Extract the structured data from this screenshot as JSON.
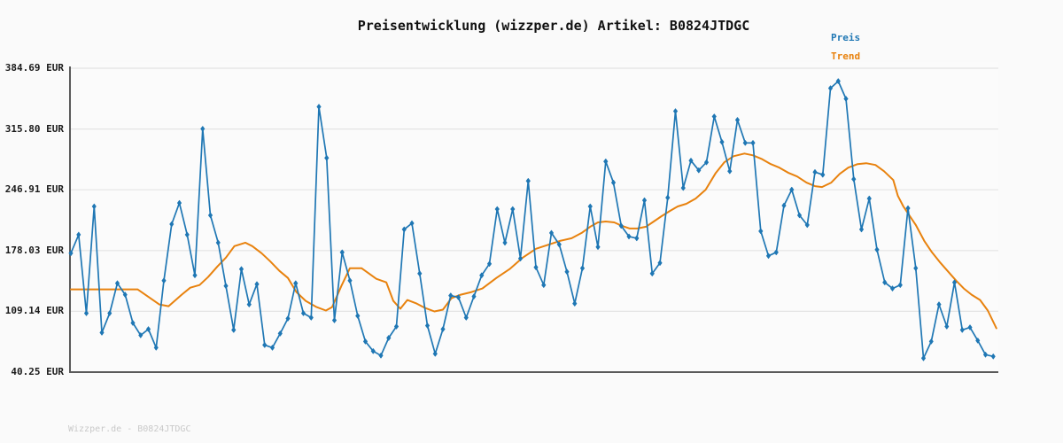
{
  "title": "Preisentwicklung (wizzper.de) Artikel: B0824JTDGC",
  "footer": "Wizzper.de - B0824JTDGC",
  "legend": [
    {
      "label": "Preis",
      "color": "#1f77b4"
    },
    {
      "label": "Trend",
      "color": "#e8820e"
    }
  ],
  "colors": {
    "background": "#fafafa",
    "plot_background": "#fbfbfb",
    "gridline": "#e4e4e4",
    "spine": "#5a5a5a",
    "price_line": "#1f77b4",
    "trend_line": "#e8820e",
    "tick_label": "#1a1a1a",
    "watermark": "#c9c9c9"
  },
  "chart_data": {
    "type": "line",
    "title": "Preisentwicklung (wizzper.de) Artikel: B0824JTDGC",
    "xlabel": "",
    "ylabel": "EUR",
    "ylim": [
      40.25,
      384.69
    ],
    "grid": "horizontal",
    "legend_position": "top-right",
    "y_tick_values": [
      384.69,
      315.8,
      246.91,
      178.03,
      109.14,
      40.25
    ],
    "y_ticks": [
      "384.69 EUR",
      "315.80 EUR",
      "246.91 EUR",
      "178.03 EUR",
      "109.14 EUR",
      "40.25 EUR"
    ],
    "x_count": 120,
    "series": [
      {
        "name": "Preis",
        "color": "#1f77b4",
        "marker": "diamond",
        "values": [
          175,
          196,
          107,
          228,
          85,
          107,
          141,
          128,
          96,
          82,
          89,
          68,
          144,
          208,
          232,
          196,
          150,
          316,
          218,
          187,
          138,
          88,
          157,
          117,
          140,
          71,
          68,
          84,
          101,
          141,
          107,
          102,
          341,
          283,
          99,
          176,
          144,
          104,
          75,
          64,
          59,
          79,
          92,
          202,
          209,
          152,
          93,
          61,
          89,
          127,
          125,
          102,
          126,
          150,
          163,
          225,
          187,
          225,
          169,
          257,
          159,
          139,
          198,
          185,
          154,
          118,
          158,
          228,
          182,
          279,
          255,
          206,
          194,
          192,
          235,
          152,
          164,
          238,
          336,
          249,
          280,
          269,
          278,
          330,
          301,
          268,
          326,
          300,
          300,
          200,
          172,
          176,
          229,
          247,
          218,
          207,
          267,
          264,
          362,
          370,
          350,
          259,
          202,
          237,
          179,
          142,
          135,
          139,
          226,
          158,
          56,
          75,
          117,
          92,
          142,
          88,
          91,
          76,
          60,
          58
        ]
      },
      {
        "name": "Trend",
        "color": "#e8820e",
        "marker": "none",
        "control_points": [
          [
            0,
            134
          ],
          [
            8.6,
            134
          ],
          [
            11.4,
            117
          ],
          [
            12.6,
            115
          ],
          [
            14.3,
            128
          ],
          [
            15.4,
            136
          ],
          [
            16.6,
            139
          ],
          [
            17.7,
            148
          ],
          [
            18.9,
            160
          ],
          [
            20,
            170
          ],
          [
            21.1,
            183
          ],
          [
            22.5,
            187
          ],
          [
            23.4,
            183
          ],
          [
            24.6,
            175
          ],
          [
            25.7,
            166
          ],
          [
            26.9,
            155
          ],
          [
            28,
            147
          ],
          [
            29.1,
            131
          ],
          [
            30.3,
            121
          ],
          [
            31.7,
            114
          ],
          [
            32.9,
            110
          ],
          [
            33.7,
            114
          ],
          [
            34.9,
            138
          ],
          [
            36,
            158
          ],
          [
            37.5,
            158
          ],
          [
            38.3,
            153
          ],
          [
            39.4,
            146
          ],
          [
            40.7,
            142
          ],
          [
            41.6,
            121
          ],
          [
            42.5,
            112
          ],
          [
            43.4,
            122
          ],
          [
            44.6,
            118
          ],
          [
            45.7,
            113
          ],
          [
            46.9,
            109
          ],
          [
            48,
            111
          ],
          [
            49.1,
            124
          ],
          [
            50.3,
            128
          ],
          [
            51.7,
            131
          ],
          [
            53.1,
            135
          ],
          [
            54.9,
            147
          ],
          [
            56.6,
            157
          ],
          [
            58.3,
            170
          ],
          [
            60,
            180
          ],
          [
            61.7,
            185
          ],
          [
            63.1,
            189
          ],
          [
            64.6,
            192
          ],
          [
            65.9,
            198
          ],
          [
            67,
            205
          ],
          [
            68,
            210
          ],
          [
            69,
            211
          ],
          [
            70.1,
            210
          ],
          [
            71.1,
            206
          ],
          [
            72.1,
            203
          ],
          [
            73.1,
            203
          ],
          [
            74.2,
            205
          ],
          [
            75.2,
            211
          ],
          [
            76.2,
            217
          ],
          [
            77.3,
            223
          ],
          [
            78.3,
            228
          ],
          [
            79.4,
            231
          ],
          [
            80.6,
            237
          ],
          [
            81.9,
            247
          ],
          [
            83.2,
            266
          ],
          [
            84.3,
            278
          ],
          [
            85.5,
            285
          ],
          [
            86.9,
            288
          ],
          [
            88,
            286
          ],
          [
            89.1,
            282
          ],
          [
            90.3,
            276
          ],
          [
            91.4,
            272
          ],
          [
            92.6,
            266
          ],
          [
            93.7,
            262
          ],
          [
            94.9,
            255
          ],
          [
            96,
            251
          ],
          [
            96.9,
            250
          ],
          [
            98.1,
            255
          ],
          [
            99.2,
            265
          ],
          [
            100.3,
            272
          ],
          [
            101.5,
            276
          ],
          [
            102.6,
            277
          ],
          [
            103.8,
            275
          ],
          [
            104.9,
            268
          ],
          [
            106.1,
            258
          ],
          [
            106.7,
            240
          ],
          [
            107.4,
            228
          ],
          [
            109,
            207
          ],
          [
            110.1,
            189
          ],
          [
            111.1,
            176
          ],
          [
            112.1,
            165
          ],
          [
            113.1,
            155
          ],
          [
            114.2,
            144
          ],
          [
            115.2,
            135
          ],
          [
            116.2,
            128
          ],
          [
            117.3,
            122
          ],
          [
            118.3,
            110
          ],
          [
            119.4,
            90
          ]
        ]
      }
    ]
  }
}
